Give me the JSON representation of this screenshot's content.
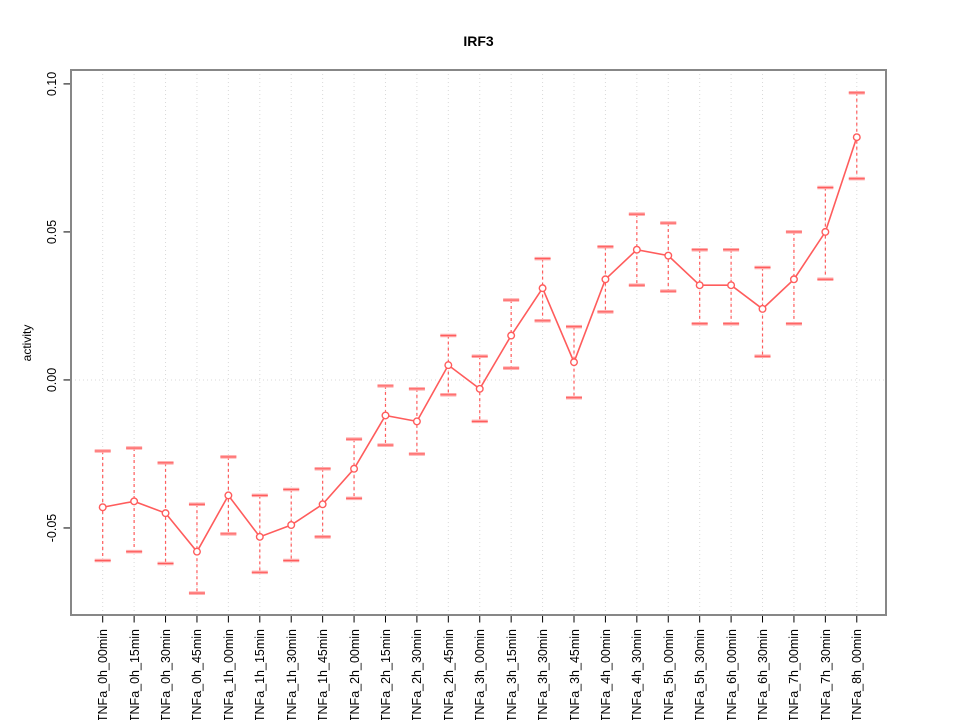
{
  "chart_data": {
    "type": "line",
    "title": "IRF3",
    "xlabel": "",
    "ylabel": "activity",
    "legend_position": "none",
    "grid": {
      "vertical_dotted": true,
      "horizontal_zero_line": true
    },
    "marker": "open-circle",
    "categories": [
      "TNFa_0h_00min",
      "TNFa_0h_15min",
      "TNFa_0h_30min",
      "TNFa_0h_45min",
      "TNFa_1h_00min",
      "TNFa_1h_15min",
      "TNFa_1h_30min",
      "TNFa_1h_45min",
      "TNFa_2h_00min",
      "TNFa_2h_15min",
      "TNFa_2h_30min",
      "TNFa_2h_45min",
      "TNFa_3h_00min",
      "TNFa_3h_15min",
      "TNFa_3h_30min",
      "TNFa_3h_45min",
      "TNFa_4h_00min",
      "TNFa_4h_30min",
      "TNFa_5h_00min",
      "TNFa_5h_30min",
      "TNFa_6h_00min",
      "TNFa_6h_30min",
      "TNFa_7h_00min",
      "TNFa_7h_30min",
      "TNFa_8h_00min"
    ],
    "series": [
      {
        "name": "IRF3 activity",
        "values": [
          -0.043,
          -0.041,
          -0.045,
          -0.058,
          -0.039,
          -0.053,
          -0.049,
          -0.042,
          -0.03,
          -0.012,
          -0.014,
          0.005,
          -0.003,
          0.015,
          0.031,
          0.006,
          0.034,
          0.044,
          0.042,
          0.032,
          0.032,
          0.024,
          0.034,
          0.05,
          0.082
        ],
        "upper": [
          -0.024,
          -0.023,
          -0.028,
          -0.042,
          -0.026,
          -0.039,
          -0.037,
          -0.03,
          -0.02,
          -0.002,
          -0.003,
          0.015,
          0.008,
          0.027,
          0.041,
          0.018,
          0.045,
          0.056,
          0.053,
          0.044,
          0.044,
          0.038,
          0.05,
          0.065,
          0.097
        ],
        "lower": [
          -0.061,
          -0.058,
          -0.062,
          -0.072,
          -0.052,
          -0.065,
          -0.061,
          -0.053,
          -0.04,
          -0.022,
          -0.025,
          -0.005,
          -0.014,
          0.004,
          0.02,
          -0.006,
          0.023,
          0.032,
          0.03,
          0.019,
          0.019,
          0.008,
          0.019,
          0.034,
          0.068
        ]
      }
    ],
    "yticks": [
      -0.05,
      0.0,
      0.05,
      0.1
    ],
    "ytick_labels": [
      "-0.05",
      "0.00",
      "0.05",
      "0.10"
    ],
    "ylim": [
      -0.0794,
      0.1047
    ],
    "colors": {
      "series": "#ff5c5c",
      "errorbar_cap": "#ffaaaa",
      "point_fill": "#ffffff",
      "grid": "#d9d9d9",
      "box": "#878787",
      "tick": "#000000",
      "text": "#000000"
    }
  }
}
